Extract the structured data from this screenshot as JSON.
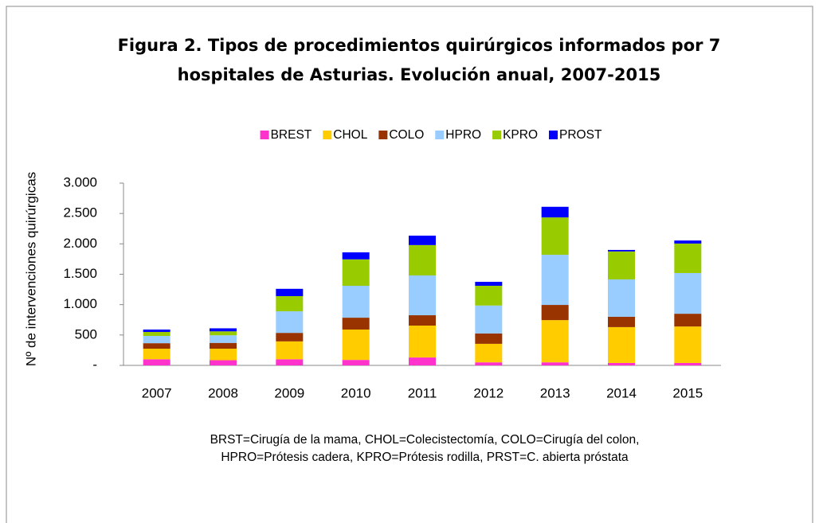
{
  "chart_data": {
    "type": "bar",
    "stacked": true,
    "title": [
      "Figura 2. Tipos de procedimientos quirúrgicos informados por 7",
      "hospitales de Asturias. Evolución anual, 2007-2015"
    ],
    "y_label": "Nº de intervenciones quirúrgicas",
    "categories": [
      "2007",
      "2008",
      "2009",
      "2010",
      "2011",
      "2012",
      "2013",
      "2014",
      "2015"
    ],
    "series": [
      {
        "name": "BREST",
        "color": "#ff33cc",
        "values": [
          100,
          85,
          100,
          90,
          130,
          50,
          50,
          40,
          40
        ]
      },
      {
        "name": "CHOL",
        "color": "#ffcc00",
        "values": [
          175,
          190,
          295,
          500,
          525,
          305,
          695,
          590,
          600
        ]
      },
      {
        "name": "COLO",
        "color": "#993300",
        "values": [
          90,
          95,
          140,
          195,
          170,
          170,
          250,
          170,
          210
        ]
      },
      {
        "name": "HPRO",
        "color": "#99ccff",
        "values": [
          120,
          125,
          355,
          525,
          655,
          460,
          825,
          615,
          670
        ]
      },
      {
        "name": "KPRO",
        "color": "#99cc00",
        "values": [
          65,
          65,
          250,
          435,
          500,
          325,
          615,
          460,
          485
        ]
      },
      {
        "name": "PROST",
        "color": "#0000ff",
        "values": [
          40,
          50,
          120,
          115,
          155,
          65,
          175,
          25,
          50
        ]
      }
    ],
    "ylim": [
      0,
      3000
    ],
    "yticks": [
      {
        "value": 0,
        "label": "-"
      },
      500,
      {
        "value": 1000,
        "label": "1.000"
      },
      {
        "value": 1500,
        "label": "1.500"
      },
      {
        "value": 2000,
        "label": "2.000"
      },
      {
        "value": 2500,
        "label": "2.500"
      },
      {
        "value": 3000,
        "label": "3.000"
      }
    ],
    "legend": "top",
    "note": [
      "BRST=Cirugía de la mama, CHOL=Colecistectomía, COLO=Cirugía del colon,",
      "HPRO=Prótesis cadera, KPRO=Prótesis rodilla, PRST=C. abierta próstata"
    ]
  }
}
